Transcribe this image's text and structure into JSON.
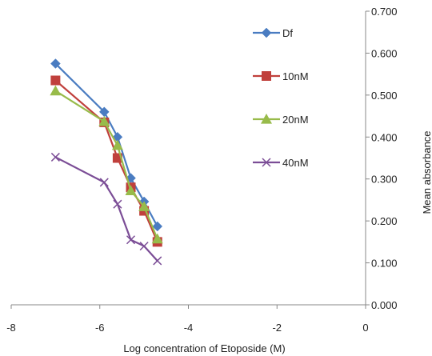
{
  "chart_data": {
    "type": "line",
    "title": "",
    "xlabel": "Log concentration of Etoposide (M)",
    "ylabel": "Mean absorbance",
    "xlim": [
      -8,
      0
    ],
    "ylim": [
      0,
      0.7
    ],
    "x_ticks": [
      "-8",
      "-6",
      "-4",
      "-2",
      "0"
    ],
    "y_ticks": [
      "0.000",
      "0.100",
      "0.200",
      "0.300",
      "0.400",
      "0.500",
      "0.600",
      "0.700"
    ],
    "grid": false,
    "legend_position": "right",
    "series": [
      {
        "name": "Df",
        "color": "#4a7cc1",
        "marker": "diamond",
        "x": [
          -7.0,
          -5.9,
          -5.6,
          -5.3,
          -5.0,
          -4.7
        ],
        "y": [
          0.575,
          0.46,
          0.4,
          0.302,
          0.246,
          0.187
        ]
      },
      {
        "name": "10nM",
        "color": "#c0403c",
        "marker": "square",
        "x": [
          -7.0,
          -5.9,
          -5.6,
          -5.3,
          -5.0,
          -4.7
        ],
        "y": [
          0.535,
          0.435,
          0.35,
          0.28,
          0.224,
          0.15
        ]
      },
      {
        "name": "20nM",
        "color": "#98bb4a",
        "marker": "triangle",
        "x": [
          -7.0,
          -5.9,
          -5.6,
          -5.3,
          -5.0,
          -4.7
        ],
        "y": [
          0.51,
          0.437,
          0.38,
          0.272,
          0.234,
          0.157
        ]
      },
      {
        "name": "40nM",
        "color": "#7b4d96",
        "marker": "x",
        "x": [
          -7.0,
          -5.9,
          -5.6,
          -5.3,
          -5.0,
          -4.7
        ],
        "y": [
          0.352,
          0.292,
          0.24,
          0.155,
          0.14,
          0.105
        ]
      }
    ]
  }
}
